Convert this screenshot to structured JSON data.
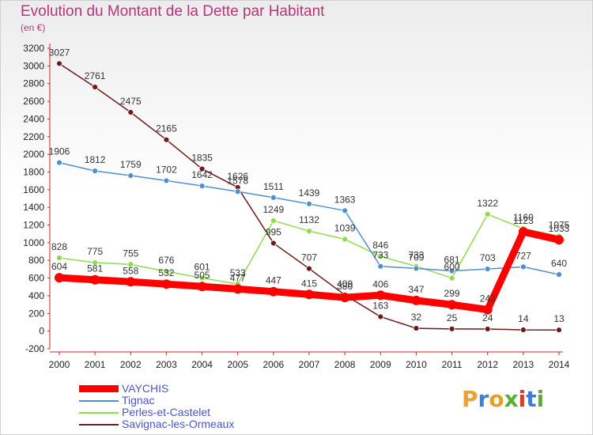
{
  "title": "Evolution du Montant de la Dette par Habitant",
  "subtitle": "(en €)",
  "logo": {
    "letters": [
      "P",
      "r",
      "o",
      "x",
      "i",
      "t",
      "i"
    ],
    "colors": [
      "#f0a030",
      "#3a7fd5",
      "#e8a020",
      "#58b030",
      "#d9382c",
      "#3a7fd5",
      "#58b030"
    ]
  },
  "chart_data": {
    "type": "line",
    "x": [
      2000,
      2001,
      2002,
      2003,
      2004,
      2005,
      2006,
      2007,
      2008,
      2009,
      2010,
      2011,
      2012,
      2013,
      2014
    ],
    "ylim": [
      -200,
      3200
    ],
    "yticks": [
      -200,
      0,
      200,
      400,
      600,
      800,
      1000,
      1200,
      1400,
      1600,
      1800,
      2000,
      2200,
      2400,
      2600,
      2800,
      3000,
      3200
    ],
    "grid": false,
    "legend_position": "bottom-left",
    "series": [
      {
        "name": "Savignac-les-Ormeaux",
        "color": "#6e1a1a",
        "values": [
          3027,
          2761,
          2475,
          2165,
          1835,
          1626,
          995,
          707,
          409,
          163,
          32,
          25,
          24,
          14,
          13
        ]
      },
      {
        "name": "Perles-et-Castelet",
        "color": "#8edc4c",
        "values": [
          828,
          775,
          755,
          676,
          601,
          533,
          1249,
          1132,
          1039,
          846,
          733,
          600,
          1322,
          1160,
          1075
        ]
      },
      {
        "name": "Tignac",
        "color": "#4f8fcf",
        "values": [
          1906,
          1812,
          1759,
          1702,
          1642,
          1578,
          1511,
          1439,
          1363,
          733,
          709,
          681,
          703,
          727,
          640
        ]
      },
      {
        "name": "VAYCHIS",
        "color": "#ff0000",
        "values": [
          604,
          581,
          558,
          532,
          505,
          477,
          447,
          415,
          380,
          406,
          347,
          299,
          243,
          1123,
          1033
        ]
      }
    ]
  }
}
